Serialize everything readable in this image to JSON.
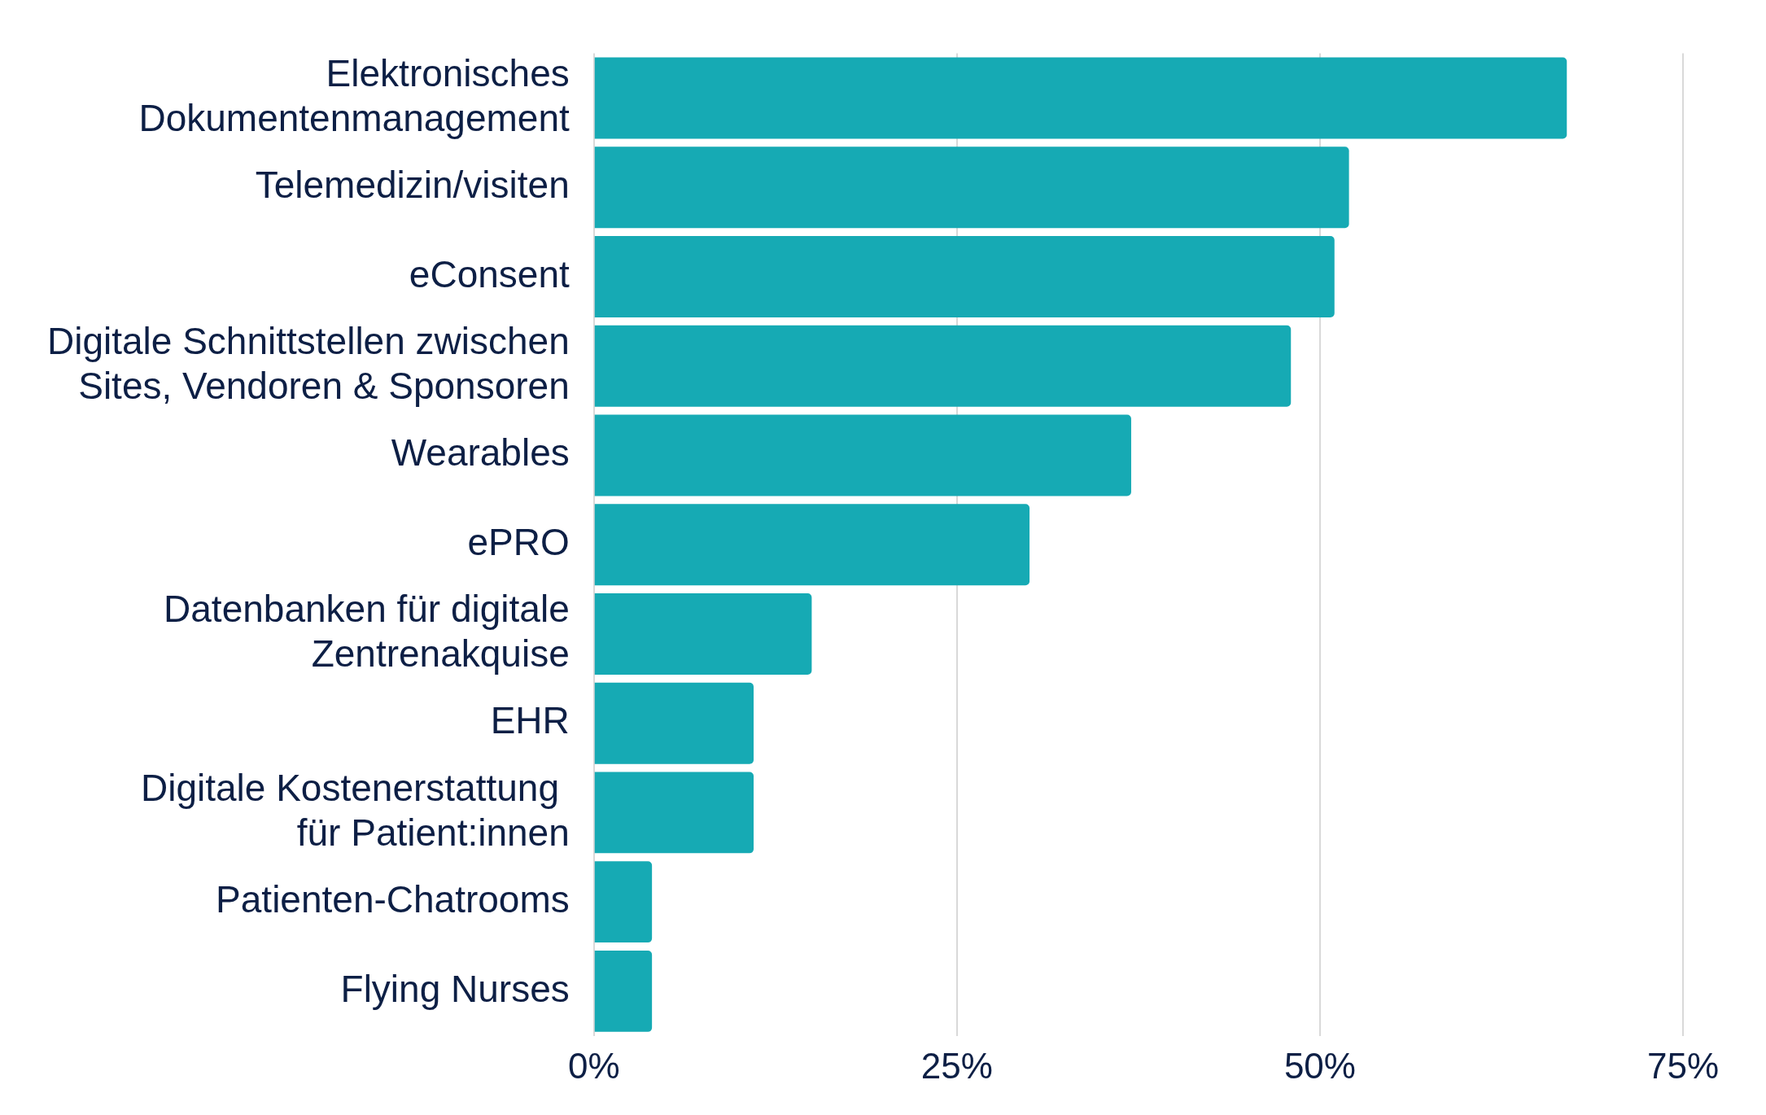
{
  "chart_data": {
    "type": "bar",
    "orientation": "horizontal",
    "categories": [
      "Elektronisches\nDokumentenmanagement",
      "Telemedizin/visiten",
      "eConsent",
      "Digitale Schnittstellen zwischen\nSites, Vendoren & Sponsoren",
      "Wearables",
      "ePRO",
      "Datenbanken für digitale\nZentrenakquise",
      "EHR",
      "Digitale Kostenerstattung \nfür Patient:innen",
      "Patienten-Chatrooms",
      "Flying Nurses"
    ],
    "values": [
      67,
      52,
      51,
      48,
      37,
      30,
      15,
      11,
      11,
      4,
      4
    ],
    "color": "#16aab4",
    "xlim": [
      0,
      75
    ],
    "xticks": [
      {
        "value": 0,
        "label": "0%"
      },
      {
        "value": 25,
        "label": "25%"
      },
      {
        "value": 50,
        "label": "50%"
      },
      {
        "value": 75,
        "label": "75%"
      }
    ],
    "grid": "x"
  }
}
